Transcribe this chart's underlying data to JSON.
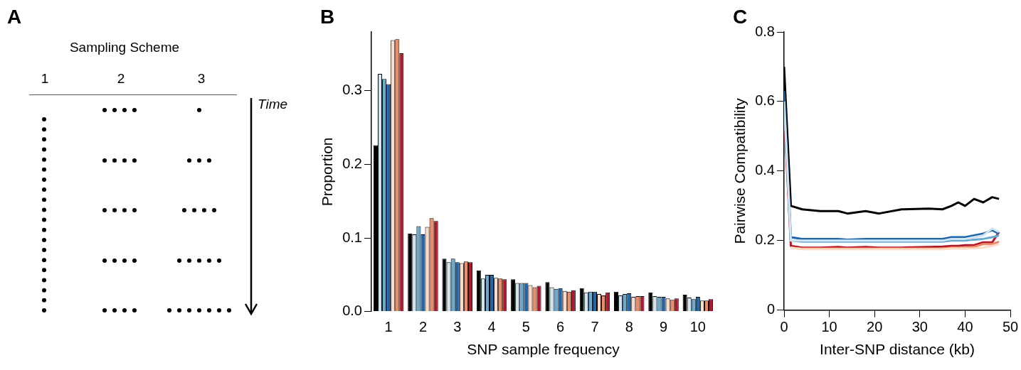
{
  "chart_data": [
    {
      "type": "other",
      "title": "Sampling Scheme",
      "categories": [
        "1",
        "2",
        "3"
      ],
      "annotations": [
        "A",
        "Time"
      ]
    },
    {
      "type": "bar",
      "annotations": [
        "B"
      ],
      "xlabel": "SNP sample frequency",
      "ylabel": "Proportion",
      "categories": [
        "1",
        "2",
        "3",
        "4",
        "5",
        "6",
        "7",
        "8",
        "9",
        "10"
      ],
      "ylim": [
        0,
        0.38
      ],
      "yticks": [
        {
          "value": 0,
          "label": "0.0"
        },
        {
          "value": 0.1,
          "label": "0.1"
        },
        {
          "value": 0.2,
          "label": "0.2"
        },
        {
          "value": 0.3,
          "label": "0.3"
        }
      ],
      "grid": false,
      "legend": false,
      "series": [
        {
          "color": "#000000",
          "values": [
            0.226,
            0.106,
            0.072,
            0.056,
            0.044,
            0.04,
            0.032,
            0.027,
            0.026,
            0.023
          ]
        },
        {
          "color": "#d1e5f0",
          "values": [
            0.323,
            0.105,
            0.067,
            0.045,
            0.039,
            0.033,
            0.026,
            0.022,
            0.021,
            0.019
          ]
        },
        {
          "color": "#67a9cf",
          "values": [
            0.316,
            0.116,
            0.072,
            0.05,
            0.039,
            0.031,
            0.027,
            0.024,
            0.02,
            0.017
          ]
        },
        {
          "color": "#2166ac",
          "values": [
            0.309,
            0.105,
            0.067,
            0.05,
            0.039,
            0.032,
            0.027,
            0.025,
            0.02,
            0.02
          ]
        },
        {
          "color": "#fddbc7",
          "values": [
            0.369,
            0.115,
            0.066,
            0.046,
            0.036,
            0.028,
            0.024,
            0.02,
            0.018,
            0.015
          ]
        },
        {
          "color": "#ef8a62",
          "values": [
            0.37,
            0.127,
            0.068,
            0.045,
            0.033,
            0.027,
            0.022,
            0.021,
            0.016,
            0.015
          ]
        },
        {
          "color": "#b2182b",
          "values": [
            0.351,
            0.123,
            0.067,
            0.044,
            0.035,
            0.029,
            0.026,
            0.021,
            0.018,
            0.017
          ]
        }
      ]
    },
    {
      "type": "line",
      "annotations": [
        "C"
      ],
      "xlabel": "Inter-SNP distance (kb)",
      "ylabel": "Pairwise Compatibility",
      "x": [
        0,
        1.5,
        4,
        8,
        12,
        14,
        18,
        21,
        26,
        32,
        35,
        37,
        38.5,
        40,
        42,
        44,
        46,
        47.5
      ],
      "xlim": [
        0,
        50
      ],
      "xticks": [
        0,
        10,
        20,
        30,
        40,
        50
      ],
      "ylim": [
        0,
        0.8
      ],
      "yticks": [
        0,
        0.2,
        0.4,
        0.6,
        0.8
      ],
      "grid": false,
      "legend": false,
      "marker": "none",
      "series": [
        {
          "color": "#d1e5f0",
          "values": [
            0.6,
            0.2,
            0.2,
            0.2,
            0.2,
            0.2,
            0.2,
            0.2,
            0.2,
            0.2,
            0.2,
            0.205,
            0.205,
            0.205,
            0.21,
            0.215,
            0.235,
            0.225
          ]
        },
        {
          "color": "#67a9cf",
          "values": [
            0.6,
            0.2,
            0.197,
            0.197,
            0.197,
            0.197,
            0.197,
            0.197,
            0.197,
            0.197,
            0.197,
            0.2,
            0.2,
            0.2,
            0.203,
            0.205,
            0.21,
            0.215
          ]
        },
        {
          "color": "#2166ac",
          "values": [
            0.63,
            0.21,
            0.205,
            0.205,
            0.205,
            0.203,
            0.205,
            0.205,
            0.205,
            0.205,
            0.205,
            0.21,
            0.21,
            0.21,
            0.215,
            0.22,
            0.23,
            0.22
          ]
        },
        {
          "color": "#fddbc7",
          "values": [
            null,
            0.18,
            0.175,
            0.175,
            0.175,
            0.175,
            0.175,
            0.175,
            0.175,
            0.175,
            0.175,
            0.177,
            0.177,
            0.177,
            0.178,
            0.18,
            0.185,
            0.19
          ]
        },
        {
          "color": "#ef8a62",
          "values": [
            null,
            0.18,
            0.177,
            0.177,
            0.177,
            0.177,
            0.177,
            0.177,
            0.177,
            0.177,
            0.177,
            0.18,
            0.18,
            0.18,
            0.182,
            0.19,
            0.19,
            0.197
          ]
        },
        {
          "color": "#b2182b",
          "values": [
            0.57,
            0.185,
            0.18,
            0.18,
            0.182,
            0.18,
            0.182,
            0.18,
            0.18,
            0.182,
            0.183,
            0.185,
            0.185,
            0.187,
            0.187,
            0.195,
            0.195,
            0.225
          ]
        },
        {
          "color": "#000000",
          "values": [
            0.7,
            0.3,
            0.29,
            0.285,
            0.285,
            0.278,
            0.285,
            0.278,
            0.29,
            0.292,
            0.29,
            0.3,
            0.31,
            0.3,
            0.32,
            0.31,
            0.325,
            0.32
          ]
        }
      ]
    }
  ]
}
